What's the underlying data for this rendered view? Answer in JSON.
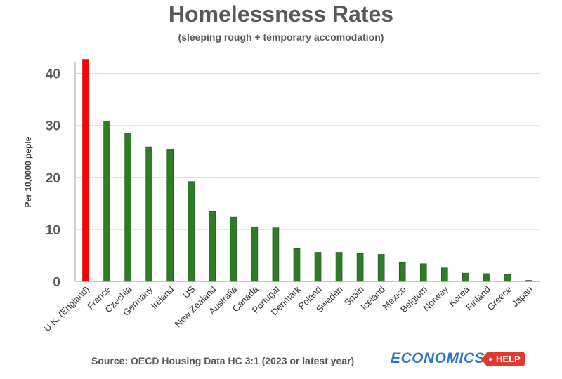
{
  "chart_data": {
    "type": "bar",
    "title": "Homelessness Rates",
    "subtitle": "(sleeping rough + temporary accomodation)",
    "ylabel": "Per 10,0000 peple",
    "xlabel": "",
    "ylim": [
      0,
      43
    ],
    "yticks": [
      "0",
      "10",
      "20",
      "30",
      "40"
    ],
    "grid": true,
    "legend": "none",
    "categories": [
      "U.K. (England)",
      "France",
      "Czechia",
      "Germany",
      "Ireland",
      "US",
      "New Zealand",
      "Australia",
      "Canada",
      "Portugal",
      "Denmark",
      "Poland",
      "Sweden",
      "Spain",
      "Iceland",
      "Mexico",
      "Belgium",
      "Norway",
      "Korea",
      "Finland",
      "Greece",
      "Japan"
    ],
    "values": [
      42.7,
      30.8,
      28.5,
      25.9,
      25.4,
      19.2,
      13.5,
      12.4,
      10.5,
      10.3,
      6.3,
      5.6,
      5.6,
      5.4,
      5.2,
      3.6,
      3.4,
      2.6,
      1.6,
      1.5,
      1.3,
      0.2
    ],
    "colors": {
      "highlight": "#ff0000",
      "bar": "#2e7d25",
      "gridline": "#bfe3ee"
    },
    "highlight_index": 0
  },
  "footer": {
    "source": "Source: OECD Housing Data HC 3:1 (2023 or latest year)",
    "logo_main": "ECONOMICS",
    "logo_tag": "HELP"
  }
}
